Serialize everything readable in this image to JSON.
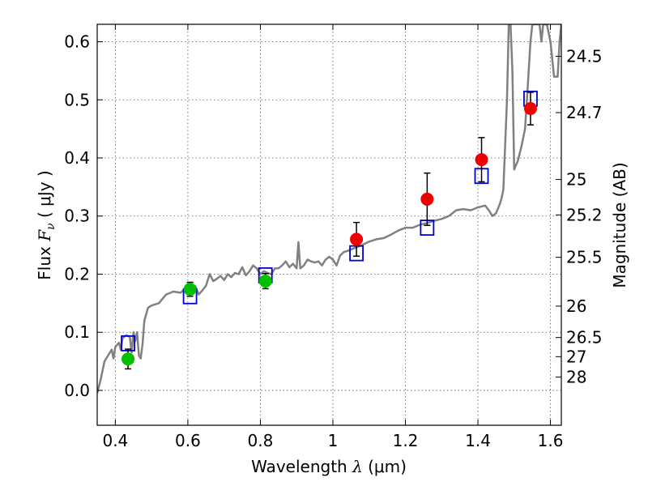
{
  "chart_data": {
    "type": "scatter",
    "xlabel_prefix": "Wavelength",
    "xlabel_symbol": "λ",
    "xlabel_unit": "(μm)",
    "ylabel_prefix": "Flux",
    "ylabel_symbol": "F",
    "ylabel_subscript": "ν",
    "ylabel_unit": "( μJy )",
    "y2label": "Magnitude (AB)",
    "xlim": [
      0.35,
      1.63
    ],
    "ylim": [
      -0.06,
      0.63
    ],
    "grid": true,
    "x_ticks": [
      0.4,
      0.6,
      0.8,
      1.0,
      1.2,
      1.4,
      1.6
    ],
    "x_tick_labels": [
      "0.4",
      "0.6",
      "0.8",
      "1",
      "1.2",
      "1.4",
      "1.6"
    ],
    "y_ticks": [
      0.0,
      0.1,
      0.2,
      0.3,
      0.4,
      0.5,
      0.6
    ],
    "y_tick_labels": [
      "0.0",
      "0.1",
      "0.2",
      "0.3",
      "0.4",
      "0.5",
      "0.6"
    ],
    "magnitude_ticks": [
      {
        "label": "24.5",
        "flux": 0.575
      },
      {
        "label": "24.7",
        "flux": 0.478
      },
      {
        "label": "25",
        "flux": 0.363
      },
      {
        "label": "25.2",
        "flux": 0.302
      },
      {
        "label": "25.5",
        "flux": 0.229
      },
      {
        "label": "26",
        "flux": 0.145
      },
      {
        "label": "26.5",
        "flux": 0.091
      },
      {
        "label": "27",
        "flux": 0.058
      },
      {
        "label": "28",
        "flux": 0.023
      }
    ],
    "colors": {
      "model": "#808080",
      "optical_points": "#00c000",
      "nir_points": "#ee0000",
      "model_boxes": "#0000cc",
      "errorbars": "#000000",
      "grid": "#555555"
    },
    "series": [
      {
        "marker": "green circle with error bars",
        "points": [
          {
            "x": 0.435,
            "y": 0.054,
            "err": 0.017
          },
          {
            "x": 0.606,
            "y": 0.174,
            "err": 0.012
          },
          {
            "x": 0.814,
            "y": 0.188,
            "err": 0.013
          }
        ]
      },
      {
        "marker": "red circle with error bars",
        "points": [
          {
            "x": 1.065,
            "y": 0.26,
            "err": 0.029
          },
          {
            "x": 1.26,
            "y": 0.329,
            "err": 0.045
          },
          {
            "x": 1.41,
            "y": 0.397,
            "err": 0.038
          },
          {
            "x": 1.545,
            "y": 0.485,
            "err": 0.028
          }
        ]
      },
      {
        "marker": "blue open square",
        "points": [
          {
            "x": 0.435,
            "y": 0.081
          },
          {
            "x": 0.606,
            "y": 0.162
          },
          {
            "x": 0.814,
            "y": 0.198
          },
          {
            "x": 1.065,
            "y": 0.236
          },
          {
            "x": 1.26,
            "y": 0.28
          },
          {
            "x": 1.41,
            "y": 0.369
          },
          {
            "x": 1.545,
            "y": 0.502
          }
        ]
      },
      {
        "marker": "grey line (model spectrum)",
        "points": [
          [
            0.35,
            -0.005
          ],
          [
            0.36,
            0.02
          ],
          [
            0.37,
            0.05
          ],
          [
            0.38,
            0.06
          ],
          [
            0.39,
            0.07
          ],
          [
            0.395,
            0.055
          ],
          [
            0.4,
            0.075
          ],
          [
            0.41,
            0.082
          ],
          [
            0.415,
            0.07
          ],
          [
            0.42,
            0.09
          ],
          [
            0.43,
            0.095
          ],
          [
            0.44,
            0.092
          ],
          [
            0.445,
            0.065
          ],
          [
            0.45,
            0.1
          ],
          [
            0.455,
            0.085
          ],
          [
            0.46,
            0.1
          ],
          [
            0.465,
            0.06
          ],
          [
            0.47,
            0.055
          ],
          [
            0.475,
            0.08
          ],
          [
            0.48,
            0.12
          ],
          [
            0.49,
            0.142
          ],
          [
            0.5,
            0.146
          ],
          [
            0.52,
            0.15
          ],
          [
            0.54,
            0.165
          ],
          [
            0.56,
            0.17
          ],
          [
            0.58,
            0.168
          ],
          [
            0.6,
            0.18
          ],
          [
            0.62,
            0.18
          ],
          [
            0.63,
            0.165
          ],
          [
            0.64,
            0.172
          ],
          [
            0.65,
            0.18
          ],
          [
            0.66,
            0.2
          ],
          [
            0.67,
            0.188
          ],
          [
            0.68,
            0.192
          ],
          [
            0.69,
            0.197
          ],
          [
            0.7,
            0.19
          ],
          [
            0.71,
            0.2
          ],
          [
            0.72,
            0.195
          ],
          [
            0.73,
            0.202
          ],
          [
            0.74,
            0.2
          ],
          [
            0.75,
            0.212
          ],
          [
            0.76,
            0.198
          ],
          [
            0.77,
            0.205
          ],
          [
            0.78,
            0.215
          ],
          [
            0.79,
            0.21
          ],
          [
            0.8,
            0.2
          ],
          [
            0.81,
            0.205
          ],
          [
            0.82,
            0.202
          ],
          [
            0.83,
            0.2
          ],
          [
            0.84,
            0.21
          ],
          [
            0.85,
            0.21
          ],
          [
            0.86,
            0.215
          ],
          [
            0.87,
            0.222
          ],
          [
            0.88,
            0.212
          ],
          [
            0.89,
            0.218
          ],
          [
            0.9,
            0.21
          ],
          [
            0.905,
            0.255
          ],
          [
            0.91,
            0.21
          ],
          [
            0.92,
            0.215
          ],
          [
            0.93,
            0.225
          ],
          [
            0.94,
            0.222
          ],
          [
            0.95,
            0.22
          ],
          [
            0.96,
            0.222
          ],
          [
            0.97,
            0.215
          ],
          [
            0.98,
            0.225
          ],
          [
            0.99,
            0.23
          ],
          [
            1.0,
            0.225
          ],
          [
            1.01,
            0.215
          ],
          [
            1.02,
            0.232
          ],
          [
            1.03,
            0.238
          ],
          [
            1.04,
            0.24
          ],
          [
            1.06,
            0.245
          ],
          [
            1.08,
            0.25
          ],
          [
            1.1,
            0.256
          ],
          [
            1.12,
            0.26
          ],
          [
            1.14,
            0.262
          ],
          [
            1.16,
            0.268
          ],
          [
            1.18,
            0.275
          ],
          [
            1.2,
            0.28
          ],
          [
            1.22,
            0.28
          ],
          [
            1.24,
            0.285
          ],
          [
            1.26,
            0.288
          ],
          [
            1.28,
            0.292
          ],
          [
            1.3,
            0.295
          ],
          [
            1.32,
            0.3
          ],
          [
            1.34,
            0.31
          ],
          [
            1.36,
            0.312
          ],
          [
            1.38,
            0.31
          ],
          [
            1.4,
            0.315
          ],
          [
            1.42,
            0.318
          ],
          [
            1.43,
            0.31
          ],
          [
            1.44,
            0.3
          ],
          [
            1.45,
            0.305
          ],
          [
            1.46,
            0.32
          ],
          [
            1.465,
            0.33
          ],
          [
            1.47,
            0.345
          ],
          [
            1.475,
            0.42
          ],
          [
            1.48,
            0.5
          ],
          [
            1.485,
            0.63
          ],
          [
            1.49,
            0.63
          ],
          [
            1.495,
            0.55
          ],
          [
            1.5,
            0.38
          ],
          [
            1.51,
            0.395
          ],
          [
            1.52,
            0.42
          ],
          [
            1.53,
            0.45
          ],
          [
            1.535,
            0.5
          ],
          [
            1.54,
            0.55
          ],
          [
            1.545,
            0.6
          ],
          [
            1.55,
            0.63
          ],
          [
            1.56,
            0.63
          ],
          [
            1.57,
            0.63
          ],
          [
            1.575,
            0.6
          ],
          [
            1.58,
            0.63
          ],
          [
            1.59,
            0.63
          ],
          [
            1.6,
            0.6
          ],
          [
            1.61,
            0.54
          ],
          [
            1.62,
            0.54
          ],
          [
            1.625,
            0.6
          ],
          [
            1.63,
            0.63
          ]
        ]
      }
    ]
  }
}
